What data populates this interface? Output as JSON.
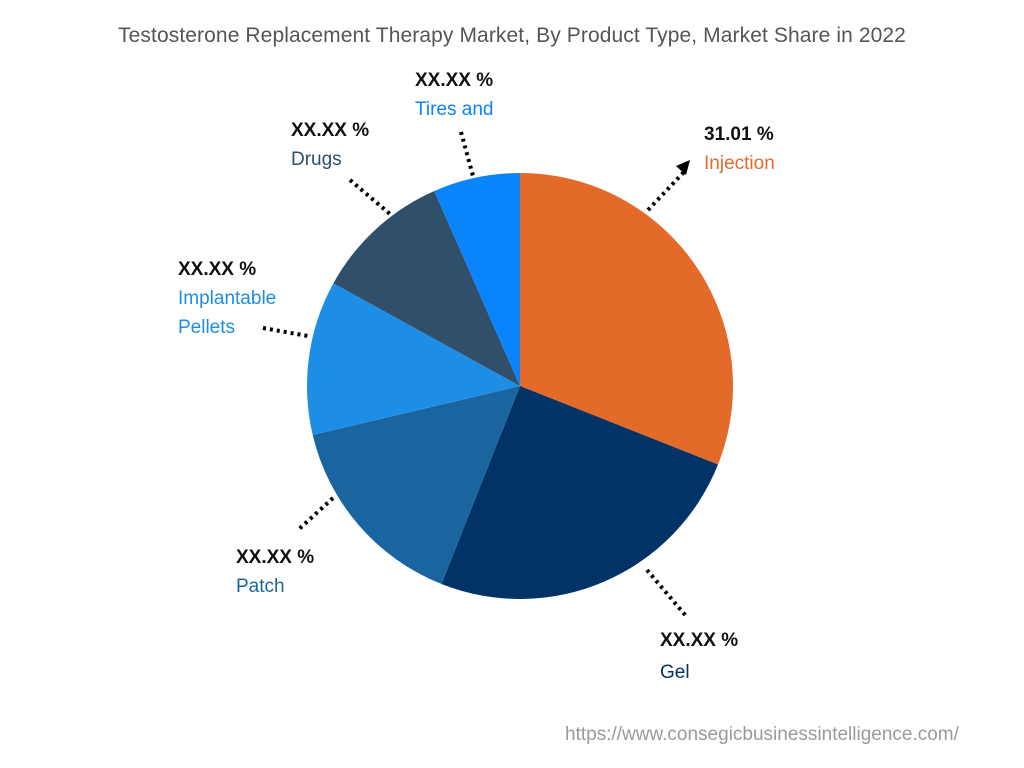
{
  "title": "Testosterone Replacement Therapy Market, By Product Type, Market Share in 2022",
  "source_url": "https://www.consegicbusinessintelligence.com/",
  "chart_data": {
    "type": "pie",
    "title": "Testosterone Replacement Therapy Market, By Product Type, Market Share in 2022",
    "start_angle_deg": 0,
    "direction": "clockwise",
    "legend_position": "none (direct labels)",
    "categories": [
      "Injection",
      "Gel",
      "Patch",
      "Implantable Pellets",
      "Drugs",
      "Tires and"
    ],
    "values": [
      31.01,
      25.0,
      15.3,
      11.7,
      10.4,
      6.59
    ],
    "labels": [
      "31.01 %",
      "XX.XX %",
      "XX.XX %",
      "XX.XX %",
      "XX.XX %",
      "XX.XX %"
    ],
    "colors": [
      "#e36a28",
      "#023366",
      "#1a64a0",
      "#1e8de6",
      "#2f4f6b",
      "#0a84fb"
    ],
    "note": "Only Injection value (31.01%) is labeled; other values are estimated from slice angles"
  },
  "labels": {
    "injection": {
      "value": "31.01 %",
      "name": "Injection"
    },
    "gel": {
      "value": "XX.XX %",
      "name": "Gel"
    },
    "patch": {
      "value": "XX.XX %",
      "name": "Patch"
    },
    "pellets": {
      "value": "XX.XX %",
      "name1": "Implantable",
      "name2": "Pellets"
    },
    "drugs": {
      "value": "XX.XX %",
      "name": "Drugs"
    },
    "tires": {
      "value": "XX.XX %",
      "name": "Tires and"
    }
  }
}
